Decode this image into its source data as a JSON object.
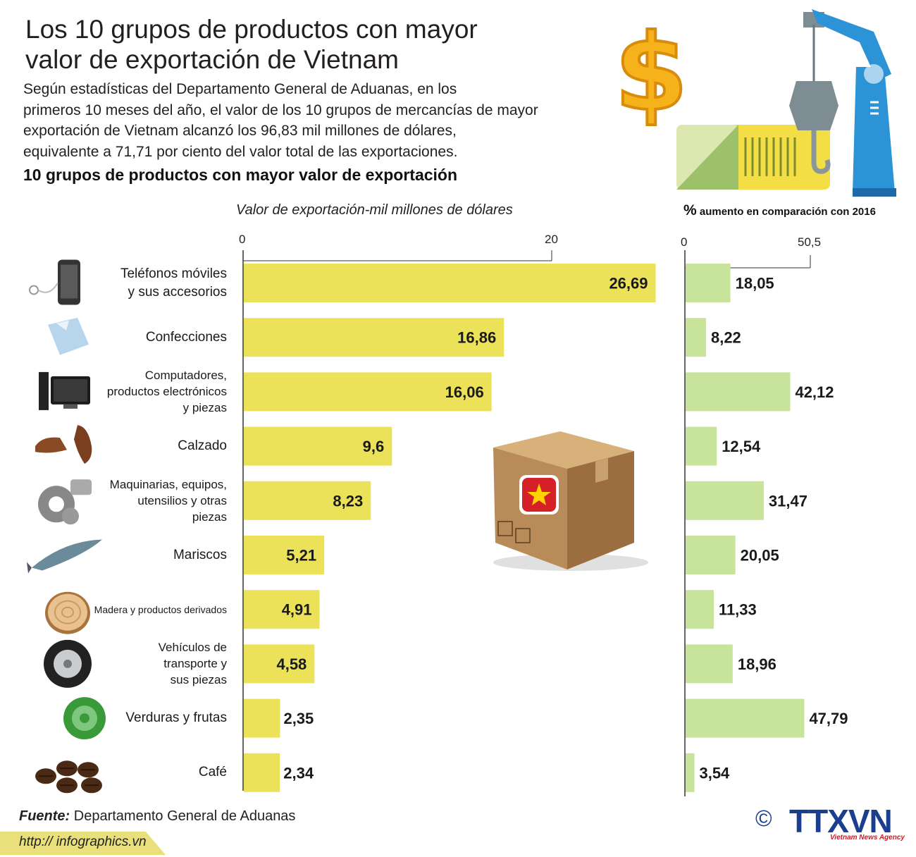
{
  "title": "Los 10 grupos de productos con mayor valor de exportación de Vietnam",
  "title_lines": [
    "Los 10 grupos de productos con mayor",
    "valor de exportación de Vietnam"
  ],
  "intro_lines": [
    "Según estadísticas del Departamento General de Aduanas, en los",
    "primeros 10 meses del año, el valor de los 10 grupos de mercancías de mayor",
    "exportación de Vietnam alcanzó los 96,83 mil millones de dólares,",
    "equivalente a 71,71 por ciento del valor total de las exportaciones."
  ],
  "subtitle": "10 grupos de productos con mayor valor de exportación",
  "source_label": "Fuente:",
  "source_text": " Departamento General de Aduanas",
  "url": "http:// infographics.vn",
  "copyright": "©",
  "agency": "TTXVN",
  "agency_sub": "Vietnam News Agency",
  "colors": {
    "bar_left": "#ece25a",
    "bar_right": "#c8e39a",
    "axis": "#333333",
    "brand": "#1b3f8f"
  },
  "icons": [
    "phone-icon",
    "shirt-icon",
    "computer-icon",
    "shoes-icon",
    "gears-icon",
    "fish-icon",
    "wood-log-icon",
    "tire-icon",
    "cabbage-icon",
    "coffee-beans-icon",
    "dollar-icon",
    "crane-container-icon",
    "cardboard-box-icon"
  ],
  "chart_data": [
    {
      "type": "bar",
      "orientation": "horizontal",
      "xlabel": "Valor de exportación-mil millones de dólares",
      "ticks": [
        "0",
        "20"
      ],
      "xlim": [
        0,
        20
      ],
      "categories": [
        [
          "Teléfonos móviles",
          "y sus accesorios"
        ],
        [
          "Confecciones"
        ],
        [
          "Computadores,",
          "productos electrónicos",
          "y piezas"
        ],
        [
          "Calzado"
        ],
        [
          "Maquinarias, equipos,",
          "utensilios y otras",
          "piezas"
        ],
        [
          "Mariscos"
        ],
        [
          "Madera y productos derivados"
        ],
        [
          "Vehículos de",
          "transporte y",
          "sus piezas"
        ],
        [
          "Verduras y frutas"
        ],
        [
          "Café"
        ]
      ],
      "values": [
        26.69,
        16.86,
        16.06,
        9.6,
        8.23,
        5.21,
        4.91,
        4.58,
        2.35,
        2.34
      ],
      "value_labels": [
        "26,69",
        "16,86",
        "16,06",
        "9,6",
        "8,23",
        "5,21",
        "4,91",
        "4,58",
        "2,35",
        "2,34"
      ]
    },
    {
      "type": "bar",
      "orientation": "horizontal",
      "xlabel_prefix": "%",
      "xlabel": " aumento en comparación con 2016",
      "ticks": [
        "0",
        "50,5"
      ],
      "xlim": [
        0,
        50.5
      ],
      "values": [
        18.05,
        8.22,
        42.12,
        12.54,
        31.47,
        20.05,
        11.33,
        18.96,
        47.79,
        3.54
      ],
      "value_labels": [
        "18,05",
        "8,22",
        "42,12",
        "12,54",
        "31,47",
        "20,05",
        "11,33",
        "18,96",
        "47,79",
        "3,54"
      ]
    }
  ]
}
